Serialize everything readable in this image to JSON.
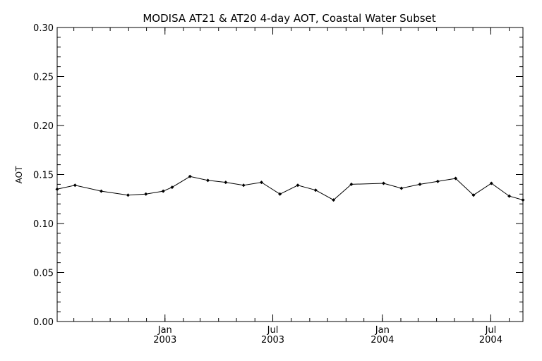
{
  "chart_data": {
    "type": "line",
    "title": "MODISA AT21 & AT20 4-day AOT, Coastal Water Subset",
    "xlabel": "",
    "ylabel": "AOT",
    "ylim": [
      0.0,
      0.3
    ],
    "xlim": [
      "2002-07-04",
      "2004-08-24"
    ],
    "y_ticks": [
      "0.00",
      "0.05",
      "0.10",
      "0.15",
      "0.20",
      "0.25",
      "0.30"
    ],
    "x_ticks": [
      {
        "date": "2003-01-01",
        "month": "Jan",
        "year": "2003"
      },
      {
        "date": "2003-07-01",
        "month": "Jul",
        "year": "2003"
      },
      {
        "date": "2004-01-01",
        "month": "Jan",
        "year": "2004"
      },
      {
        "date": "2004-07-01",
        "month": "Jul",
        "year": "2004"
      }
    ],
    "grid": false,
    "legend": "none",
    "line_color": "#000000",
    "series": [
      {
        "x": [
          "2002-07-04",
          "2002-08-03",
          "2002-09-16",
          "2002-10-31",
          "2002-11-30",
          "2002-12-29",
          "2003-01-13",
          "2003-02-12",
          "2003-03-14",
          "2003-04-13",
          "2003-05-13",
          "2003-06-12",
          "2003-07-13",
          "2003-08-12",
          "2003-09-11",
          "2003-10-11",
          "2003-11-10",
          "2004-01-03",
          "2004-02-02",
          "2004-03-04",
          "2004-04-03",
          "2004-05-03",
          "2004-06-02",
          "2004-07-02",
          "2004-08-01",
          "2004-08-24"
        ],
        "values": [
          0.135,
          0.139,
          0.133,
          0.129,
          0.13,
          0.133,
          0.137,
          0.148,
          0.144,
          0.142,
          0.139,
          0.142,
          0.13,
          0.139,
          0.134,
          0.124,
          0.14,
          0.141,
          0.136,
          0.14,
          0.143,
          0.146,
          0.129,
          0.141,
          0.128,
          0.124
        ]
      }
    ]
  }
}
